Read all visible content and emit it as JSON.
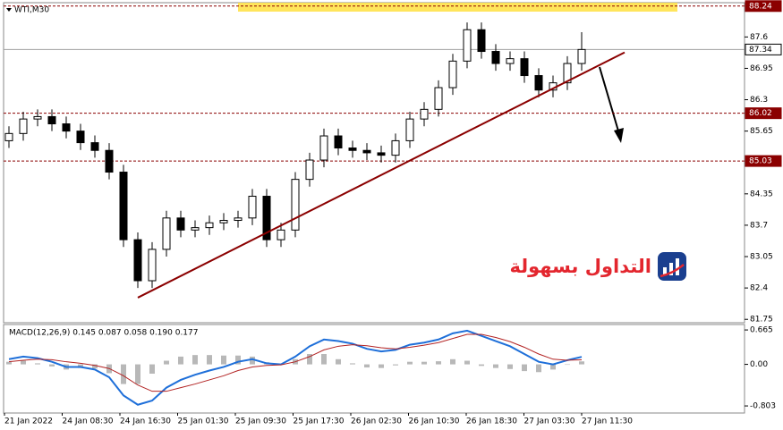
{
  "chart_data": {
    "type": "candlestick",
    "symbol": "WTI,M30",
    "watermark": "التداول بسهولة",
    "x_labels": [
      "21 Jan 2022",
      "24 Jan 08:30",
      "24 Jan 16:30",
      "25 Jan 01:30",
      "25 Jan 09:30",
      "25 Jan 17:30",
      "26 Jan 02:30",
      "26 Jan 10:30",
      "26 Jan 18:30",
      "27 Jan 03:30",
      "27 Jan 11:30"
    ],
    "ylim": [
      81.68,
      88.31
    ],
    "yticks": [
      87.6,
      86.95,
      86.3,
      85.65,
      84.35,
      83.7,
      83.05,
      82.4,
      81.75
    ],
    "candles": {
      "open": [
        85.45,
        85.6,
        85.9,
        85.95,
        85.8,
        85.65,
        85.41,
        85.25,
        84.8,
        83.4,
        82.55,
        83.2,
        83.85,
        83.6,
        83.65,
        83.75,
        83.8,
        83.85,
        84.3,
        83.4,
        83.6,
        84.65,
        85.05,
        85.55,
        85.3,
        85.25,
        85.2,
        85.15,
        85.45,
        85.9,
        86.1,
        86.55,
        87.1,
        87.75,
        87.3,
        87.05,
        87.15,
        86.8,
        86.5,
        86.65,
        87.05
      ],
      "high": [
        85.75,
        86.05,
        86.1,
        86.1,
        85.95,
        85.8,
        85.56,
        85.4,
        84.95,
        83.55,
        83.35,
        84.0,
        84.0,
        83.8,
        83.9,
        83.95,
        84.0,
        84.45,
        84.45,
        83.75,
        84.8,
        85.2,
        85.7,
        85.7,
        85.45,
        85.4,
        85.35,
        85.6,
        86.05,
        86.25,
        86.7,
        87.25,
        87.9,
        87.9,
        87.45,
        87.3,
        87.3,
        86.95,
        86.8,
        87.2,
        87.7
      ],
      "low": [
        85.3,
        85.45,
        85.75,
        85.65,
        85.5,
        85.26,
        85.1,
        84.65,
        83.25,
        82.4,
        82.4,
        83.05,
        83.45,
        83.45,
        83.5,
        83.6,
        83.65,
        83.7,
        83.25,
        83.25,
        83.45,
        84.5,
        84.9,
        85.15,
        85.1,
        85.05,
        85.0,
        85.0,
        85.3,
        85.75,
        85.95,
        86.4,
        86.95,
        87.15,
        86.9,
        86.9,
        86.65,
        86.35,
        86.35,
        86.5,
        86.9
      ],
      "close": [
        85.6,
        85.9,
        85.95,
        85.8,
        85.65,
        85.41,
        85.25,
        84.8,
        83.4,
        82.55,
        83.2,
        83.85,
        83.6,
        83.65,
        83.75,
        83.8,
        83.85,
        84.3,
        83.4,
        83.6,
        84.65,
        85.05,
        85.55,
        85.3,
        85.25,
        85.2,
        85.15,
        85.45,
        85.9,
        86.1,
        86.55,
        87.1,
        87.75,
        87.3,
        87.05,
        87.15,
        86.8,
        86.5,
        86.65,
        87.05,
        87.34
      ]
    },
    "up_color": "#000000",
    "down_color": "#000000",
    "levels": [
      {
        "value": 88.24,
        "color": "#8b0000"
      },
      {
        "value": 87.34,
        "color": "#a0a0a0"
      },
      {
        "value": 86.02,
        "color": "#8b0000"
      },
      {
        "value": 85.03,
        "color": "#8b0000"
      }
    ],
    "trendline": {
      "x": [
        9,
        43
      ],
      "values": [
        82.2,
        87.28
      ],
      "color": "#8b0000"
    },
    "macd": {
      "label": "MACD(12,26,9) 0.145 0.087 0.058 0.190 0.177",
      "ylim": [
        -0.94,
        0.77
      ],
      "yticks": [
        0.665,
        {
          "value": 0,
          "label": "0.00"
        },
        -0.803
      ],
      "series": [
        {
          "name": "MACD",
          "color": "#1e6fd9",
          "values": [
            0.1,
            0.15,
            0.12,
            0.05,
            -0.05,
            -0.05,
            -0.1,
            -0.25,
            -0.6,
            -0.78,
            -0.7,
            -0.45,
            -0.3,
            -0.2,
            -0.12,
            -0.05,
            0.05,
            0.1,
            0.02,
            0.0,
            0.15,
            0.35,
            0.48,
            0.45,
            0.4,
            0.3,
            0.25,
            0.28,
            0.38,
            0.42,
            0.48,
            0.6,
            0.65,
            0.55,
            0.45,
            0.35,
            0.2,
            0.05,
            0.0,
            0.08,
            0.145
          ]
        },
        {
          "name": "Signal",
          "color": "#b22222",
          "values": [
            0.05,
            0.08,
            0.1,
            0.09,
            0.05,
            0.02,
            -0.02,
            -0.08,
            -0.22,
            -0.4,
            -0.52,
            -0.52,
            -0.45,
            -0.38,
            -0.3,
            -0.22,
            -0.12,
            -0.05,
            -0.02,
            -0.01,
            0.05,
            0.15,
            0.28,
            0.35,
            0.38,
            0.36,
            0.32,
            0.3,
            0.33,
            0.37,
            0.42,
            0.5,
            0.58,
            0.58,
            0.52,
            0.44,
            0.33,
            0.2,
            0.1,
            0.08,
            0.087
          ]
        }
      ],
      "histogram": {
        "color": "#b8b8b8",
        "values": [
          0.05,
          0.07,
          0.02,
          -0.04,
          -0.1,
          -0.07,
          -0.08,
          -0.17,
          -0.38,
          -0.38,
          -0.18,
          0.07,
          0.15,
          0.18,
          0.18,
          0.17,
          0.17,
          0.15,
          0.04,
          0.01,
          0.1,
          0.2,
          0.2,
          0.1,
          0.02,
          -0.06,
          -0.07,
          -0.02,
          0.05,
          0.05,
          0.06,
          0.1,
          0.07,
          -0.03,
          -0.07,
          -0.09,
          -0.13,
          -0.15,
          -0.1,
          0.0,
          0.058
        ]
      }
    }
  }
}
